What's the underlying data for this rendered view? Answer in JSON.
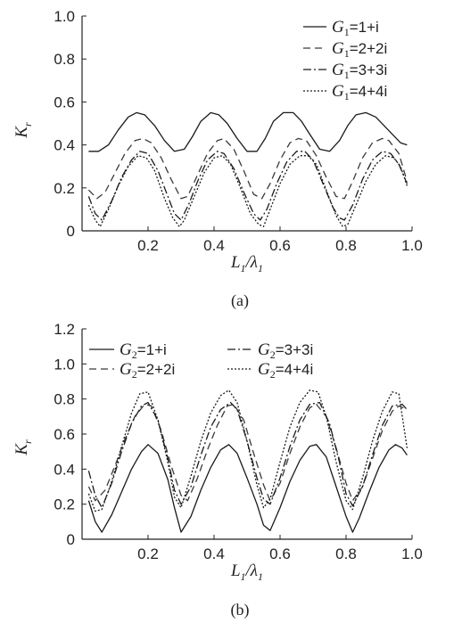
{
  "chart_data": [
    {
      "type": "line",
      "panel_label": "(a)",
      "xlabel": {
        "main": "L",
        "sub1": "1",
        "slash": "/λ",
        "sub2": "1"
      },
      "ylabel": {
        "main": "K",
        "sub": "r"
      },
      "xlim": [
        0,
        1.0
      ],
      "ylim": [
        0,
        1.0
      ],
      "x_ticks": [
        "0.2",
        "0.4",
        "0.6",
        "0.8",
        "1.0"
      ],
      "y_ticks": [
        "0",
        "0.2",
        "0.4",
        "0.6",
        "0.8",
        "1.0"
      ],
      "legend_position": "top-right",
      "series": [
        {
          "name": "G1=1+i",
          "label_main": "G",
          "label_sub": "1",
          "label_rest": "=1+i",
          "dash": "solid",
          "color": "#1a1a1a",
          "x": [
            0.02,
            0.05,
            0.08,
            0.11,
            0.14,
            0.165,
            0.19,
            0.22,
            0.25,
            0.28,
            0.31,
            0.335,
            0.36,
            0.39,
            0.415,
            0.44,
            0.47,
            0.5,
            0.53,
            0.555,
            0.58,
            0.61,
            0.64,
            0.665,
            0.69,
            0.72,
            0.75,
            0.78,
            0.805,
            0.83,
            0.86,
            0.89,
            0.915,
            0.94,
            0.965,
            0.985
          ],
          "y": [
            0.37,
            0.37,
            0.4,
            0.47,
            0.53,
            0.55,
            0.54,
            0.49,
            0.42,
            0.37,
            0.38,
            0.44,
            0.51,
            0.55,
            0.54,
            0.5,
            0.43,
            0.37,
            0.37,
            0.43,
            0.51,
            0.55,
            0.55,
            0.51,
            0.45,
            0.38,
            0.37,
            0.42,
            0.49,
            0.54,
            0.55,
            0.53,
            0.49,
            0.45,
            0.41,
            0.4
          ]
        },
        {
          "name": "G1=2+2i",
          "label_main": "G",
          "label_sub": "1",
          "label_rest": "=2+2i",
          "dash": "8,5",
          "color": "#3a3a3a",
          "x": [
            0.02,
            0.045,
            0.07,
            0.1,
            0.13,
            0.16,
            0.185,
            0.21,
            0.24,
            0.27,
            0.3,
            0.32,
            0.35,
            0.38,
            0.41,
            0.43,
            0.46,
            0.49,
            0.52,
            0.545,
            0.57,
            0.6,
            0.63,
            0.655,
            0.68,
            0.71,
            0.74,
            0.77,
            0.795,
            0.82,
            0.85,
            0.88,
            0.91,
            0.93,
            0.96,
            0.985
          ],
          "y": [
            0.19,
            0.15,
            0.18,
            0.27,
            0.36,
            0.42,
            0.43,
            0.41,
            0.34,
            0.24,
            0.15,
            0.16,
            0.26,
            0.36,
            0.42,
            0.43,
            0.38,
            0.28,
            0.17,
            0.15,
            0.22,
            0.33,
            0.41,
            0.43,
            0.42,
            0.35,
            0.25,
            0.16,
            0.15,
            0.23,
            0.34,
            0.41,
            0.43,
            0.42,
            0.36,
            0.23
          ]
        },
        {
          "name": "G1=3+3i",
          "label_main": "G",
          "label_sub": "1",
          "label_rest": "=3+3i",
          "dash": "9,3,2,3",
          "color": "#1a1a1a",
          "x": [
            0.02,
            0.04,
            0.06,
            0.09,
            0.12,
            0.15,
            0.175,
            0.2,
            0.23,
            0.26,
            0.28,
            0.3,
            0.325,
            0.35,
            0.38,
            0.41,
            0.43,
            0.46,
            0.49,
            0.52,
            0.54,
            0.56,
            0.59,
            0.62,
            0.65,
            0.675,
            0.7,
            0.73,
            0.76,
            0.78,
            0.795,
            0.82,
            0.85,
            0.88,
            0.91,
            0.935,
            0.96,
            0.985
          ],
          "y": [
            0.16,
            0.08,
            0.05,
            0.14,
            0.25,
            0.33,
            0.37,
            0.36,
            0.28,
            0.16,
            0.08,
            0.05,
            0.13,
            0.23,
            0.33,
            0.37,
            0.36,
            0.29,
            0.18,
            0.08,
            0.05,
            0.1,
            0.22,
            0.32,
            0.37,
            0.37,
            0.33,
            0.22,
            0.11,
            0.06,
            0.05,
            0.12,
            0.24,
            0.33,
            0.37,
            0.36,
            0.31,
            0.22
          ]
        },
        {
          "name": "G1=4+4i",
          "label_main": "G",
          "label_sub": "1",
          "label_rest": "=4+4i",
          "dash": "2,2",
          "color": "#1a1a1a",
          "x": [
            0.02,
            0.04,
            0.055,
            0.08,
            0.11,
            0.14,
            0.17,
            0.195,
            0.22,
            0.25,
            0.275,
            0.295,
            0.31,
            0.34,
            0.37,
            0.4,
            0.425,
            0.45,
            0.48,
            0.51,
            0.535,
            0.55,
            0.57,
            0.6,
            0.63,
            0.66,
            0.685,
            0.71,
            0.74,
            0.77,
            0.79,
            0.805,
            0.83,
            0.86,
            0.89,
            0.92,
            0.945,
            0.965,
            0.985
          ],
          "y": [
            0.12,
            0.05,
            0.02,
            0.1,
            0.21,
            0.3,
            0.35,
            0.34,
            0.28,
            0.15,
            0.06,
            0.02,
            0.05,
            0.16,
            0.27,
            0.34,
            0.35,
            0.31,
            0.2,
            0.08,
            0.03,
            0.02,
            0.1,
            0.22,
            0.31,
            0.35,
            0.35,
            0.31,
            0.19,
            0.07,
            0.02,
            0.03,
            0.12,
            0.23,
            0.31,
            0.35,
            0.34,
            0.3,
            0.21
          ]
        }
      ]
    },
    {
      "type": "line",
      "panel_label": "(b)",
      "xlabel": {
        "main": "L",
        "sub1": "1",
        "slash": "/λ",
        "sub2": "1"
      },
      "ylabel": {
        "main": "K",
        "sub": "r"
      },
      "xlim": [
        0,
        1.0
      ],
      "ylim": [
        0,
        1.2
      ],
      "x_ticks": [
        "0.2",
        "0.4",
        "0.6",
        "0.8",
        "1.0"
      ],
      "y_ticks": [
        "0",
        "0.2",
        "0.4",
        "0.6",
        "0.8",
        "1.0",
        "1.2"
      ],
      "legend_position": "top",
      "series": [
        {
          "name": "G2=1+i",
          "label_main": "G",
          "label_sub": "2",
          "label_rest": "=1+i",
          "dash": "solid",
          "color": "#1a1a1a",
          "x": [
            0.02,
            0.04,
            0.06,
            0.09,
            0.12,
            0.15,
            0.18,
            0.2,
            0.23,
            0.26,
            0.28,
            0.3,
            0.33,
            0.36,
            0.39,
            0.42,
            0.445,
            0.47,
            0.5,
            0.53,
            0.55,
            0.57,
            0.6,
            0.63,
            0.66,
            0.69,
            0.71,
            0.74,
            0.77,
            0.8,
            0.82,
            0.84,
            0.87,
            0.9,
            0.93,
            0.95,
            0.97,
            0.985
          ],
          "y": [
            0.22,
            0.1,
            0.04,
            0.14,
            0.27,
            0.4,
            0.5,
            0.54,
            0.49,
            0.34,
            0.18,
            0.04,
            0.13,
            0.28,
            0.41,
            0.51,
            0.54,
            0.49,
            0.35,
            0.2,
            0.08,
            0.05,
            0.18,
            0.33,
            0.45,
            0.53,
            0.54,
            0.47,
            0.3,
            0.13,
            0.04,
            0.12,
            0.27,
            0.41,
            0.51,
            0.54,
            0.52,
            0.48
          ]
        },
        {
          "name": "G2=2+2i",
          "label_main": "G",
          "label_sub": "2",
          "label_rest": "=2+2i",
          "dash": "8,5",
          "color": "#3a3a3a",
          "x": [
            0.02,
            0.04,
            0.07,
            0.1,
            0.13,
            0.16,
            0.19,
            0.21,
            0.24,
            0.27,
            0.3,
            0.32,
            0.35,
            0.38,
            0.41,
            0.44,
            0.46,
            0.49,
            0.52,
            0.55,
            0.57,
            0.6,
            0.63,
            0.66,
            0.69,
            0.71,
            0.74,
            0.77,
            0.8,
            0.82,
            0.85,
            0.88,
            0.91,
            0.94,
            0.96,
            0.985
          ],
          "y": [
            0.3,
            0.22,
            0.28,
            0.42,
            0.57,
            0.7,
            0.77,
            0.76,
            0.62,
            0.42,
            0.25,
            0.22,
            0.35,
            0.51,
            0.65,
            0.76,
            0.77,
            0.68,
            0.49,
            0.31,
            0.22,
            0.32,
            0.49,
            0.64,
            0.75,
            0.77,
            0.7,
            0.52,
            0.32,
            0.22,
            0.3,
            0.46,
            0.62,
            0.73,
            0.76,
            0.74
          ]
        },
        {
          "name": "G2=3+3i",
          "label_main": "G",
          "label_sub": "2",
          "label_rest": "=3+3i",
          "dash": "9,3,2,3",
          "color": "#1a1a1a",
          "x": [
            0.02,
            0.04,
            0.06,
            0.09,
            0.12,
            0.15,
            0.18,
            0.2,
            0.23,
            0.26,
            0.28,
            0.3,
            0.33,
            0.36,
            0.39,
            0.42,
            0.45,
            0.47,
            0.5,
            0.53,
            0.55,
            0.57,
            0.6,
            0.63,
            0.66,
            0.69,
            0.72,
            0.75,
            0.78,
            0.8,
            0.82,
            0.85,
            0.88,
            0.91,
            0.94,
            0.97,
            0.985
          ],
          "y": [
            0.39,
            0.25,
            0.18,
            0.32,
            0.5,
            0.66,
            0.76,
            0.78,
            0.68,
            0.46,
            0.28,
            0.2,
            0.3,
            0.48,
            0.64,
            0.74,
            0.78,
            0.74,
            0.56,
            0.35,
            0.23,
            0.2,
            0.35,
            0.53,
            0.68,
            0.77,
            0.78,
            0.66,
            0.44,
            0.26,
            0.19,
            0.3,
            0.48,
            0.65,
            0.76,
            0.77,
            0.74
          ]
        },
        {
          "name": "G2=4+4i",
          "label_main": "G",
          "label_sub": "2",
          "label_rest": "=4+4i",
          "dash": "2,2",
          "color": "#1a1a1a",
          "x": [
            0.02,
            0.04,
            0.06,
            0.09,
            0.12,
            0.15,
            0.175,
            0.2,
            0.23,
            0.26,
            0.28,
            0.3,
            0.33,
            0.36,
            0.39,
            0.42,
            0.445,
            0.47,
            0.5,
            0.53,
            0.55,
            0.57,
            0.6,
            0.63,
            0.66,
            0.69,
            0.715,
            0.74,
            0.77,
            0.8,
            0.82,
            0.85,
            0.88,
            0.91,
            0.94,
            0.96,
            0.985
          ],
          "y": [
            0.26,
            0.16,
            0.17,
            0.33,
            0.53,
            0.72,
            0.83,
            0.84,
            0.68,
            0.44,
            0.24,
            0.18,
            0.36,
            0.56,
            0.72,
            0.82,
            0.85,
            0.78,
            0.56,
            0.31,
            0.18,
            0.23,
            0.44,
            0.64,
            0.78,
            0.85,
            0.84,
            0.7,
            0.44,
            0.22,
            0.17,
            0.35,
            0.56,
            0.73,
            0.84,
            0.83,
            0.52
          ]
        }
      ]
    }
  ]
}
